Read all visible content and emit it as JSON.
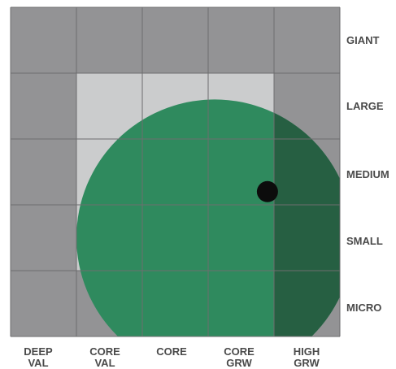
{
  "grid": {
    "rows": [
      "GIANT",
      "LARGE",
      "MEDIUM",
      "SMALL",
      "MICRO"
    ],
    "columns": [
      {
        "line1": "DEEP",
        "line2": "VAL"
      },
      {
        "line1": "CORE",
        "line2": "VAL"
      },
      {
        "line1": "CORE",
        "line2": ""
      },
      {
        "line1": "CORE",
        "line2": "GRW"
      },
      {
        "line1": "HIGH",
        "line2": "GRW"
      }
    ],
    "core_cells": [
      [
        1,
        1
      ],
      [
        1,
        2
      ],
      [
        1,
        3
      ],
      [
        2,
        1
      ],
      [
        2,
        2
      ],
      [
        2,
        3
      ],
      [
        3,
        1
      ],
      [
        3,
        2
      ],
      [
        3,
        3
      ]
    ]
  },
  "colors": {
    "outer_cell": "#939395",
    "core_cell": "#cbcccd",
    "grid_line": "#6d6d6f",
    "circle_light": "#2f8a5e",
    "circle_dark": "#265f42",
    "marker": "#0c0c0c",
    "label": "#4a4a4a"
  },
  "style_zone": {
    "center": {
      "x": 3.1,
      "y": 3.5
    },
    "radius": 2.1
  },
  "marker": {
    "x": 3.9,
    "y": 2.8
  }
}
